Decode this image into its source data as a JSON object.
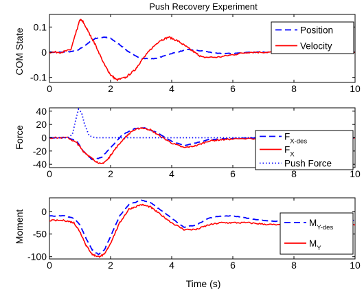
{
  "chart_data": [
    {
      "type": "line",
      "title": "Push Recovery Experiment",
      "xlabel": "",
      "ylabel": "COM State",
      "xlim": [
        0,
        10
      ],
      "ylim": [
        -0.12,
        0.15
      ],
      "xticks": [
        0,
        2,
        4,
        6,
        8,
        10
      ],
      "xtick_labels": [
        "0",
        "2",
        "4",
        "6",
        "8",
        "10"
      ],
      "yticks": [
        -0.1,
        0,
        0.1
      ],
      "ytick_labels": [
        "-0.1",
        "0",
        "0.1"
      ],
      "grid": false,
      "legend_position": "top-right",
      "series": [
        {
          "name": "Position",
          "color": "#0000ff",
          "style": "dashed",
          "x": [
            0,
            0.5,
            0.9,
            1.2,
            1.5,
            1.8,
            2.0,
            2.3,
            2.6,
            3.0,
            3.5,
            4.0,
            4.5,
            5.0,
            5.5,
            6.0,
            6.5,
            7.0,
            8.0,
            9.0,
            10.0
          ],
          "y": [
            0.0,
            0.0,
            0.005,
            0.03,
            0.055,
            0.06,
            0.055,
            0.03,
            0.0,
            -0.025,
            -0.025,
            -0.005,
            0.01,
            0.005,
            -0.005,
            -0.005,
            0.0,
            0.0,
            0.0,
            0.0,
            0.0
          ]
        },
        {
          "name": "Velocity",
          "color": "#ff0000",
          "style": "solid",
          "x": [
            0,
            0.4,
            0.7,
            0.85,
            1.0,
            1.1,
            1.3,
            1.5,
            1.8,
            2.0,
            2.2,
            2.5,
            2.8,
            3.0,
            3.3,
            3.6,
            3.9,
            4.2,
            4.5,
            4.8,
            5.0,
            5.5,
            6.0,
            6.5,
            7.0,
            7.5,
            8.0,
            9.0,
            10.0
          ],
          "y": [
            0.0,
            0.0,
            0.01,
            0.07,
            0.13,
            0.12,
            0.075,
            0.03,
            -0.05,
            -0.09,
            -0.11,
            -0.1,
            -0.07,
            -0.035,
            0.01,
            0.045,
            0.06,
            0.045,
            0.02,
            -0.005,
            -0.02,
            -0.02,
            -0.01,
            0.0,
            0.0,
            0.0,
            0.0,
            0.0,
            0.0
          ]
        }
      ]
    },
    {
      "type": "line",
      "title": "",
      "xlabel": "",
      "ylabel": "Force",
      "xlim": [
        0,
        10
      ],
      "ylim": [
        -45,
        45
      ],
      "xticks": [
        0,
        2,
        4,
        6,
        8,
        10
      ],
      "xtick_labels": [
        "0",
        "2",
        "4",
        "6",
        "8",
        "10"
      ],
      "yticks": [
        -40,
        -20,
        0,
        20,
        40
      ],
      "ytick_labels": [
        "-40",
        "-20",
        "0",
        "20",
        "40"
      ],
      "grid": false,
      "legend_position": "right",
      "series": [
        {
          "name": "F",
          "name_sub": "X-des",
          "color": "#0000ff",
          "style": "dashed",
          "x": [
            0,
            0.6,
            0.9,
            1.1,
            1.4,
            1.7,
            2.0,
            2.4,
            2.8,
            3.1,
            3.5,
            4.0,
            4.4,
            4.8,
            5.2,
            5.6,
            6.0,
            7.0,
            8.0,
            9.0,
            10.0
          ],
          "y": [
            0,
            0,
            -5,
            -20,
            -33,
            -30,
            -15,
            5,
            14,
            15,
            8,
            -5,
            -12,
            -8,
            -3,
            -2,
            -1,
            0,
            0,
            0,
            0
          ]
        },
        {
          "name": "F",
          "name_sub": "X",
          "color": "#ff0000",
          "style": "solid",
          "x": [
            0,
            0.6,
            0.9,
            1.1,
            1.3,
            1.5,
            1.7,
            1.9,
            2.1,
            2.4,
            2.7,
            3.0,
            3.3,
            3.6,
            4.0,
            4.4,
            4.8,
            5.2,
            5.6,
            6.0,
            7.0,
            8.0,
            9.0,
            10.0
          ],
          "y": [
            0,
            0,
            -8,
            -20,
            -28,
            -35,
            -40,
            -33,
            -20,
            -3,
            10,
            15,
            12,
            3,
            -8,
            -15,
            -12,
            -5,
            -3,
            -2,
            -1,
            0,
            0,
            0
          ]
        },
        {
          "name": "Push Force",
          "color": "#0000ff",
          "style": "dotted",
          "x": [
            0,
            0.6,
            0.75,
            0.85,
            0.95,
            1.05,
            1.15,
            1.3,
            1.5,
            2.0,
            10.0
          ],
          "y": [
            0,
            0,
            5,
            25,
            43,
            38,
            20,
            3,
            0,
            0,
            0
          ]
        }
      ]
    },
    {
      "type": "line",
      "title": "",
      "xlabel": "Time (s)",
      "ylabel": "Moment",
      "xlim": [
        0,
        10
      ],
      "ylim": [
        -105,
        30
      ],
      "xticks": [
        0,
        2,
        4,
        6,
        8,
        10
      ],
      "xtick_labels": [
        "0",
        "2",
        "4",
        "6",
        "8",
        "10"
      ],
      "yticks": [
        -100,
        -50,
        0
      ],
      "ytick_labels": [
        "-100",
        "-50",
        "0"
      ],
      "grid": false,
      "legend_position": "right",
      "series": [
        {
          "name": "M",
          "name_sub": "Y-des",
          "color": "#0000ff",
          "style": "dashed",
          "x": [
            0,
            0.5,
            0.8,
            1.0,
            1.2,
            1.4,
            1.6,
            1.8,
            2.0,
            2.3,
            2.6,
            3.0,
            3.3,
            3.6,
            4.0,
            4.4,
            4.8,
            5.2,
            5.6,
            6.0,
            6.5,
            7.0,
            7.5,
            8.0,
            9.0,
            10.0
          ],
          "y": [
            -10,
            -10,
            -15,
            -30,
            -60,
            -85,
            -95,
            -85,
            -55,
            -10,
            15,
            25,
            20,
            5,
            -15,
            -35,
            -30,
            -15,
            -10,
            -10,
            -15,
            -20,
            -22,
            -22,
            -20,
            -20
          ]
        },
        {
          "name": "M",
          "name_sub": "Y",
          "color": "#ff0000",
          "style": "solid",
          "x": [
            0,
            0.5,
            0.8,
            1.0,
            1.2,
            1.4,
            1.6,
            1.8,
            2.0,
            2.3,
            2.6,
            3.0,
            3.3,
            3.6,
            4.0,
            4.4,
            4.8,
            5.2,
            5.6,
            6.0,
            6.5,
            7.0,
            7.5,
            8.0,
            9.0,
            10.0
          ],
          "y": [
            -20,
            -20,
            -25,
            -45,
            -75,
            -95,
            -100,
            -95,
            -70,
            -25,
            5,
            15,
            10,
            -5,
            -25,
            -40,
            -40,
            -30,
            -25,
            -25,
            -25,
            -28,
            -30,
            -30,
            -30,
            -30
          ]
        }
      ]
    }
  ]
}
